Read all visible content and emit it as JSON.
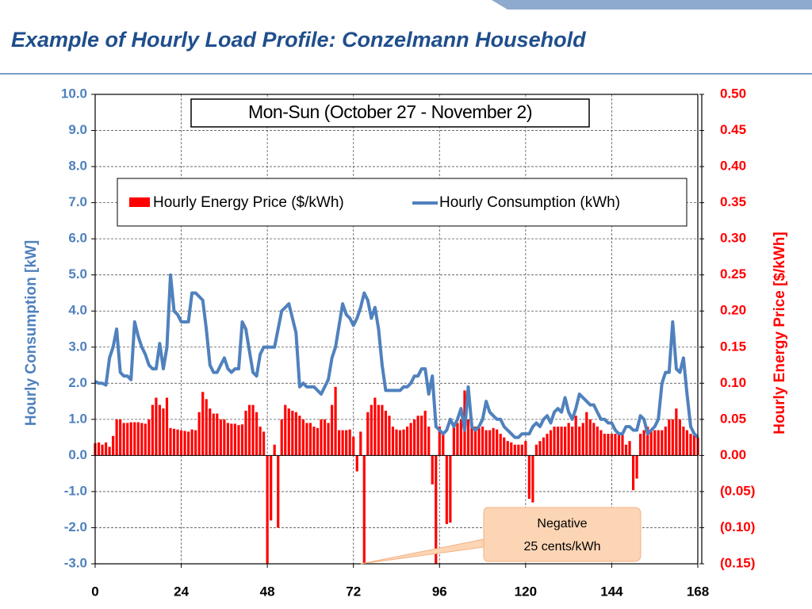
{
  "page_title": "Example of Hourly Load Profile: Conzelmann Household",
  "chart_data": {
    "type": "bar-line",
    "title": "Mon-Sun (October 27 - November 2)",
    "ylabel": "Hourly Consumption [kW]",
    "y2label": "Hourly Energy Price [$/kWh]",
    "annotation": [
      "Negative",
      "25 cents/kWh"
    ],
    "xlim": [
      0,
      168
    ],
    "xticks": [
      0,
      24,
      48,
      72,
      96,
      120,
      144,
      168
    ],
    "ylim": [
      -3,
      10
    ],
    "yticks": [
      {
        "value": 10,
        "label": "10.0"
      },
      {
        "value": 9,
        "label": "9.0"
      },
      {
        "value": 8,
        "label": "8.0"
      },
      {
        "value": 7,
        "label": "7.0"
      },
      {
        "value": 6,
        "label": "6.0"
      },
      {
        "value": 5,
        "label": "5.0"
      },
      {
        "value": 4,
        "label": "4.0"
      },
      {
        "value": 3,
        "label": "3.0"
      },
      {
        "value": 2,
        "label": "2.0"
      },
      {
        "value": 1,
        "label": "1.0"
      },
      {
        "value": 0,
        "label": "0.0"
      },
      {
        "value": -1,
        "label": "-1.0"
      },
      {
        "value": -2,
        "label": "-2.0"
      },
      {
        "value": -3,
        "label": "-3.0"
      }
    ],
    "y2lim": [
      -0.15,
      0.5
    ],
    "y2ticks": [
      {
        "value": 0.5,
        "label": "0.50"
      },
      {
        "value": 0.45,
        "label": "0.45"
      },
      {
        "value": 0.4,
        "label": "0.40"
      },
      {
        "value": 0.35,
        "label": "0.35"
      },
      {
        "value": 0.3,
        "label": "0.30"
      },
      {
        "value": 0.25,
        "label": "0.25"
      },
      {
        "value": 0.2,
        "label": "0.20"
      },
      {
        "value": 0.15,
        "label": "0.15"
      },
      {
        "value": 0.1,
        "label": "0.10"
      },
      {
        "value": 0.05,
        "label": "0.05"
      },
      {
        "value": 0,
        "label": "0.00"
      },
      {
        "value": -0.05,
        "label": "(0.05)"
      },
      {
        "value": -0.1,
        "label": "(0.10)"
      },
      {
        "value": -0.15,
        "label": "(0.15)"
      }
    ],
    "grid": true,
    "x": [
      0,
      1,
      2,
      3,
      4,
      5,
      6,
      7,
      8,
      9,
      10,
      11,
      12,
      13,
      14,
      15,
      16,
      17,
      18,
      19,
      20,
      21,
      22,
      23,
      24,
      25,
      26,
      27,
      28,
      29,
      30,
      31,
      32,
      33,
      34,
      35,
      36,
      37,
      38,
      39,
      40,
      41,
      42,
      43,
      44,
      45,
      46,
      47,
      48,
      49,
      50,
      51,
      52,
      53,
      54,
      55,
      56,
      57,
      58,
      59,
      60,
      61,
      62,
      63,
      64,
      65,
      66,
      67,
      68,
      69,
      70,
      71,
      72,
      73,
      74,
      75,
      76,
      77,
      78,
      79,
      80,
      81,
      82,
      83,
      84,
      85,
      86,
      87,
      88,
      89,
      90,
      91,
      92,
      93,
      94,
      95,
      96,
      97,
      98,
      99,
      100,
      101,
      102,
      103,
      104,
      105,
      106,
      107,
      108,
      109,
      110,
      111,
      112,
      113,
      114,
      115,
      116,
      117,
      118,
      119,
      120,
      121,
      122,
      123,
      124,
      125,
      126,
      127,
      128,
      129,
      130,
      131,
      132,
      133,
      134,
      135,
      136,
      137,
      138,
      139,
      140,
      141,
      142,
      143,
      144,
      145,
      146,
      147,
      148,
      149,
      150,
      151,
      152,
      153,
      154,
      155,
      156,
      157,
      158,
      159,
      160,
      161,
      162,
      163,
      164,
      165,
      166,
      167,
      168
    ],
    "series": [
      {
        "name": "Hourly Energy Price ($/kWh)",
        "kind": "bar",
        "axis": "y2",
        "color": "#ff0000",
        "values": [
          0.017,
          0.018,
          0.015,
          0.018,
          0.012,
          0.027,
          0.05,
          0.05,
          0.045,
          0.045,
          0.046,
          0.046,
          0.046,
          0.045,
          0.044,
          0.05,
          0.07,
          0.08,
          0.07,
          0.065,
          0.08,
          0.038,
          0.037,
          0.036,
          0.035,
          0.034,
          0.033,
          0.036,
          0.035,
          0.06,
          0.088,
          0.078,
          0.065,
          0.058,
          0.058,
          0.05,
          0.05,
          0.045,
          0.044,
          0.044,
          0.042,
          0.043,
          0.062,
          0.07,
          0.07,
          0.06,
          0.04,
          0.033,
          -0.15,
          -0.09,
          0.015,
          -0.1,
          0.05,
          0.07,
          0.065,
          0.062,
          0.06,
          0.055,
          0.05,
          0.045,
          0.045,
          0.04,
          0.038,
          0.05,
          0.05,
          0.045,
          0.07,
          0.095,
          0.035,
          0.035,
          0.035,
          0.036,
          0.026,
          -0.022,
          0.033,
          -0.15,
          0.06,
          0.07,
          0.08,
          0.07,
          0.07,
          0.062,
          0.055,
          0.04,
          0.036,
          0.035,
          0.036,
          0.04,
          0.045,
          0.05,
          0.055,
          0.055,
          0.062,
          0.04,
          -0.04,
          -0.15,
          0.04,
          0.03,
          -0.095,
          -0.093,
          0.04,
          0.045,
          0.05,
          0.09,
          0.05,
          0.045,
          0.04,
          0.038,
          0.04,
          0.035,
          0.035,
          0.038,
          0.036,
          0.03,
          0.025,
          0.02,
          0.018,
          0.015,
          0.015,
          0.015,
          0.02,
          -0.06,
          -0.065,
          0.015,
          0.02,
          0.025,
          0.03,
          0.035,
          0.04,
          0.04,
          0.04,
          0.04,
          0.045,
          0.04,
          0.055,
          0.04,
          0.045,
          0.06,
          0.05,
          0.045,
          0.04,
          0.035,
          0.03,
          0.03,
          0.03,
          0.03,
          0.03,
          0.028,
          0.015,
          0.02,
          -0.048,
          -0.032,
          0.03,
          0.035,
          0.04,
          0.035,
          0.035,
          0.035,
          0.035,
          0.04,
          0.05,
          0.05,
          0.065,
          0.05,
          0.04,
          0.035,
          0.03,
          0.028,
          0.025
        ]
      },
      {
        "name": "Hourly Consumption (kWh)",
        "kind": "line",
        "axis": "y",
        "color": "#4f81bd",
        "values": [
          2.05,
          2.0,
          2.0,
          1.95,
          2.7,
          3.0,
          3.5,
          2.3,
          2.2,
          2.2,
          2.1,
          3.7,
          3.3,
          3.0,
          2.8,
          2.5,
          2.4,
          2.4,
          3.1,
          2.4,
          3.0,
          5.0,
          4.0,
          3.9,
          3.7,
          3.7,
          3.7,
          4.5,
          4.5,
          4.4,
          4.3,
          3.5,
          2.5,
          2.3,
          2.3,
          2.5,
          2.7,
          2.4,
          2.3,
          2.4,
          2.4,
          3.7,
          3.5,
          2.9,
          2.3,
          2.2,
          2.8,
          3.0,
          3.0,
          3.0,
          3.0,
          3.5,
          4.0,
          4.1,
          4.2,
          3.8,
          3.4,
          1.9,
          2.0,
          1.9,
          1.9,
          1.9,
          1.8,
          1.7,
          1.9,
          2.1,
          2.7,
          3.0,
          3.6,
          4.2,
          3.9,
          3.8,
          3.6,
          3.8,
          4.1,
          4.5,
          4.3,
          3.8,
          4.1,
          3.5,
          2.5,
          1.8,
          1.8,
          1.8,
          1.8,
          1.8,
          1.9,
          1.9,
          2.0,
          2.2,
          2.2,
          2.4,
          2.4,
          1.7,
          2.2,
          0.8,
          0.7,
          0.6,
          0.7,
          1.0,
          0.8,
          1.0,
          1.3,
          0.7,
          1.9,
          0.8,
          0.7,
          0.8,
          1.0,
          1.5,
          1.2,
          1.1,
          1.0,
          1.0,
          0.8,
          0.7,
          0.6,
          0.5,
          0.5,
          0.6,
          0.6,
          0.6,
          0.8,
          0.9,
          0.8,
          1.0,
          1.1,
          0.9,
          1.2,
          1.3,
          1.2,
          1.6,
          1.2,
          1.0,
          1.3,
          1.7,
          1.6,
          1.5,
          1.4,
          1.4,
          1.2,
          1.0,
          1.0,
          0.9,
          0.9,
          0.7,
          0.6,
          0.6,
          0.8,
          0.8,
          0.7,
          0.7,
          1.1,
          1.0,
          0.6,
          0.7,
          0.8,
          1.0,
          2.0,
          2.3,
          2.3,
          3.7,
          2.4,
          2.3,
          2.7,
          1.7,
          0.8,
          0.6,
          0.5
        ]
      }
    ]
  }
}
